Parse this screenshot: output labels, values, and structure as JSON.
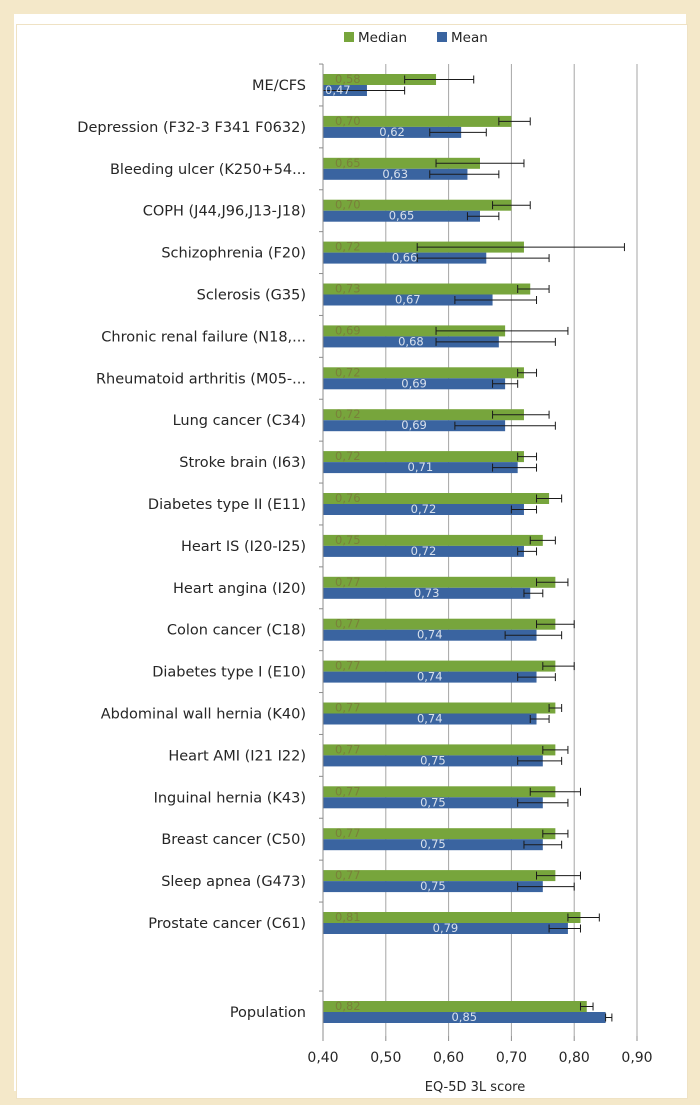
{
  "chart_data": {
    "type": "bar",
    "orientation": "horizontal",
    "xlabel": "EQ-5D 3L score",
    "xlim": [
      0.4,
      0.9
    ],
    "xticks": [
      "0,40",
      "0,50",
      "0,60",
      "0,70",
      "0,80",
      "0,90"
    ],
    "grid": true,
    "legend_position": "top",
    "categories": [
      "ME/CFS",
      "Depression (F32-3 F341 F0632)",
      "Bleeding ulcer (K250+54...",
      "COPH (J44,J96,J13-J18)",
      "Schizophrenia (F20)",
      "Sclerosis (G35)",
      "Chronic renal failure (N18,...",
      "Rheumatoid arthritis (M05-...",
      "Lung cancer (C34)",
      "Stroke brain (I63)",
      "Diabetes type II (E11)",
      "Heart IS (I20-I25)",
      "Heart angina (I20)",
      "Colon cancer (C18)",
      "Diabetes type I (E10)",
      "Abdominal wall hernia (K40)",
      "Heart AMI  (I21 I22)",
      "Inguinal hernia (K43)",
      "Breast cancer (C50)",
      "Sleep apnea (G473)",
      "Prostate cancer (C61)",
      "Population"
    ],
    "series": [
      {
        "name": "Median",
        "color": "#77a53c",
        "values": [
          0.58,
          0.7,
          0.65,
          0.7,
          0.72,
          0.73,
          0.69,
          0.72,
          0.72,
          0.72,
          0.76,
          0.75,
          0.77,
          0.77,
          0.77,
          0.77,
          0.77,
          0.77,
          0.77,
          0.77,
          0.81,
          0.82
        ],
        "labels": [
          "0,58",
          "0,70",
          "0,65",
          "0,70",
          "0,72",
          "0,73",
          "0,69",
          "0,72",
          "0,72",
          "0,72",
          "0,76",
          "0,75",
          "0,77",
          "0,77",
          "0,77",
          "0,77",
          "0,77",
          "0,77",
          "0,77",
          "0,77",
          "0,81",
          "0,82"
        ],
        "error_low": [
          0.53,
          0.68,
          0.58,
          0.67,
          0.55,
          0.71,
          0.58,
          0.71,
          0.67,
          0.71,
          0.74,
          0.73,
          0.74,
          0.74,
          0.75,
          0.76,
          0.75,
          0.73,
          0.75,
          0.74,
          0.79,
          0.81
        ],
        "error_high": [
          0.64,
          0.73,
          0.72,
          0.73,
          0.88,
          0.76,
          0.79,
          0.74,
          0.76,
          0.74,
          0.78,
          0.77,
          0.79,
          0.8,
          0.8,
          0.78,
          0.79,
          0.81,
          0.79,
          0.81,
          0.84,
          0.83
        ]
      },
      {
        "name": "Mean",
        "color": "#3a64a0",
        "values": [
          0.47,
          0.62,
          0.63,
          0.65,
          0.66,
          0.67,
          0.68,
          0.69,
          0.69,
          0.71,
          0.72,
          0.72,
          0.73,
          0.74,
          0.74,
          0.74,
          0.75,
          0.75,
          0.75,
          0.75,
          0.79,
          0.85
        ],
        "labels": [
          "0,47",
          "0,62",
          "0,63",
          "0,65",
          "0,66",
          "0,67",
          "0,68",
          "0,69",
          "0,69",
          "0,71",
          "0,72",
          "0,72",
          "0,73",
          "0,74",
          "0,74",
          "0,74",
          "0,75",
          "0,75",
          "0,75",
          "0,75",
          "0,79",
          "0,85"
        ],
        "error_low": [
          0.4,
          0.57,
          0.57,
          0.63,
          0.55,
          0.61,
          0.58,
          0.67,
          0.61,
          0.67,
          0.7,
          0.71,
          0.72,
          0.69,
          0.71,
          0.73,
          0.71,
          0.71,
          0.72,
          0.71,
          0.76,
          0.85
        ],
        "error_high": [
          0.53,
          0.66,
          0.68,
          0.68,
          0.76,
          0.74,
          0.77,
          0.71,
          0.77,
          0.74,
          0.74,
          0.74,
          0.75,
          0.78,
          0.77,
          0.76,
          0.78,
          0.79,
          0.78,
          0.8,
          0.81,
          0.86
        ]
      }
    ]
  }
}
